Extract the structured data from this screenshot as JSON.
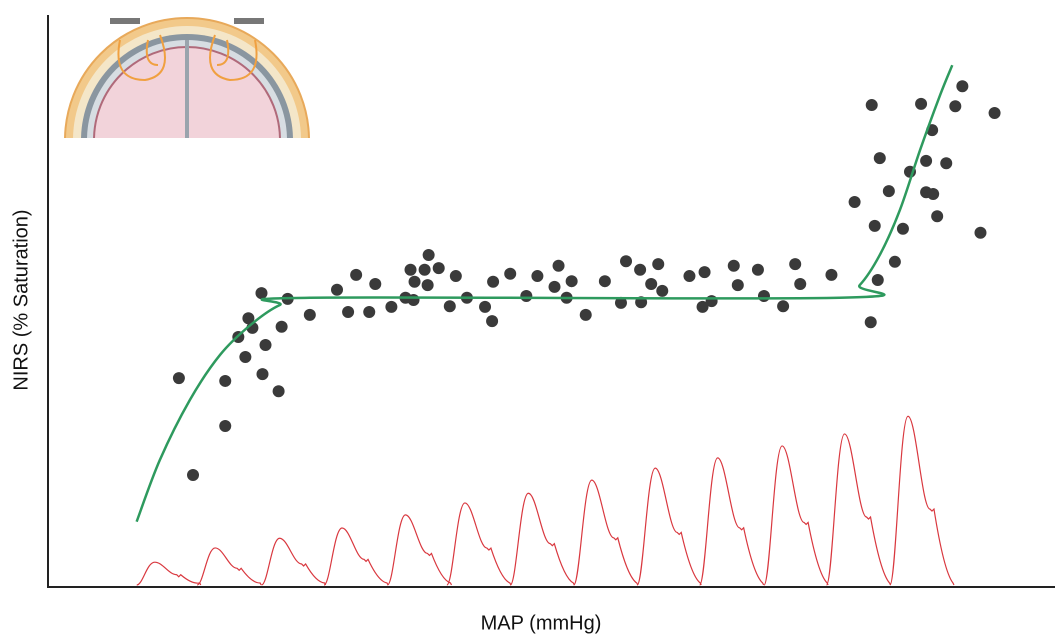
{
  "chart_data": {
    "type": "scatter",
    "x_label": "MAP (mmHg)",
    "y_label": "NIRS (% Saturation)",
    "xlim": [
      0,
      100
    ],
    "ylim": [
      0,
      100
    ],
    "series": [
      {
        "type": "scatter",
        "color": "#3a3a3a",
        "x": [
          13.0,
          14.4,
          17.6,
          17.6,
          18.9,
          19.6,
          19.9,
          20.3,
          21.2,
          21.3,
          21.6,
          22.9,
          23.2,
          23.8,
          26.0,
          28.7,
          29.8,
          30.6,
          31.9,
          32.5,
          34.1,
          35.5,
          36.0,
          36.3,
          36.4,
          37.4,
          37.8,
          37.7,
          38.8,
          39.9,
          40.5,
          41.6,
          43.4,
          44.1,
          44.2,
          45.9,
          47.5,
          48.6,
          50.3,
          50.7,
          51.5,
          52.0,
          53.4,
          55.3,
          56.9,
          57.4,
          58.8,
          58.9,
          59.9,
          60.6,
          61.0,
          63.7,
          65.0,
          65.2,
          65.9,
          68.1,
          68.5,
          70.5,
          71.1,
          73.0,
          74.2,
          74.7,
          77.8,
          80.1,
          81.7,
          81.8,
          82.1,
          82.4,
          82.6,
          83.5,
          84.1,
          84.9,
          85.6,
          86.7,
          87.2,
          87.8,
          87.2,
          87.9,
          88.3,
          89.2,
          90.1,
          90.8,
          92.6,
          94.0
        ],
        "values": [
          36.3,
          19.3,
          27.9,
          35.8,
          43.5,
          40.0,
          46.8,
          45.1,
          51.2,
          37.0,
          42.1,
          34.0,
          45.3,
          50.2,
          47.4,
          51.8,
          47.9,
          54.4,
          47.9,
          52.8,
          48.8,
          50.4,
          55.3,
          50.0,
          53.2,
          55.3,
          57.9,
          52.6,
          55.6,
          48.9,
          54.2,
          50.4,
          48.8,
          46.3,
          53.2,
          54.6,
          50.7,
          54.2,
          52.3,
          56.0,
          50.4,
          53.3,
          47.4,
          53.3,
          49.5,
          56.8,
          55.3,
          49.6,
          52.8,
          56.3,
          51.6,
          54.2,
          48.8,
          54.9,
          49.8,
          56.0,
          52.6,
          55.3,
          50.7,
          48.9,
          56.3,
          52.8,
          54.4,
          67.2,
          46.1,
          84.2,
          63.0,
          53.5,
          74.9,
          69.1,
          56.7,
          62.5,
          72.5,
          84.4,
          74.4,
          79.8,
          68.9,
          68.6,
          64.7,
          74.0,
          84.0,
          87.5,
          61.8,
          82.8
        ]
      },
      {
        "type": "line",
        "color": "#2e9a5e",
        "x": [
          8.8,
          11.1,
          14.1,
          17.1,
          20.1,
          23.0,
          26.0,
          78.6,
          80.6,
          82.6,
          84.6,
          86.6,
          88.6,
          89.8
        ],
        "values": [
          11.1,
          21.9,
          32.5,
          40.4,
          45.6,
          49.1,
          50.4,
          50.4,
          52.6,
          57.9,
          65.8,
          76.3,
          86.0,
          91.2
        ]
      },
      {
        "type": "pulse",
        "color": "#d9383f",
        "x": [
          10.6,
          16.6,
          23.0,
          29.2,
          35.5,
          41.4,
          47.7,
          54.0,
          60.3,
          66.5,
          72.9,
          79.1,
          85.4
        ],
        "values": [
          4.0,
          6.5,
          8.2,
          10.0,
          12.3,
          14.4,
          16.1,
          18.4,
          20.5,
          22.3,
          24.4,
          26.5,
          29.6
        ]
      }
    ]
  }
}
